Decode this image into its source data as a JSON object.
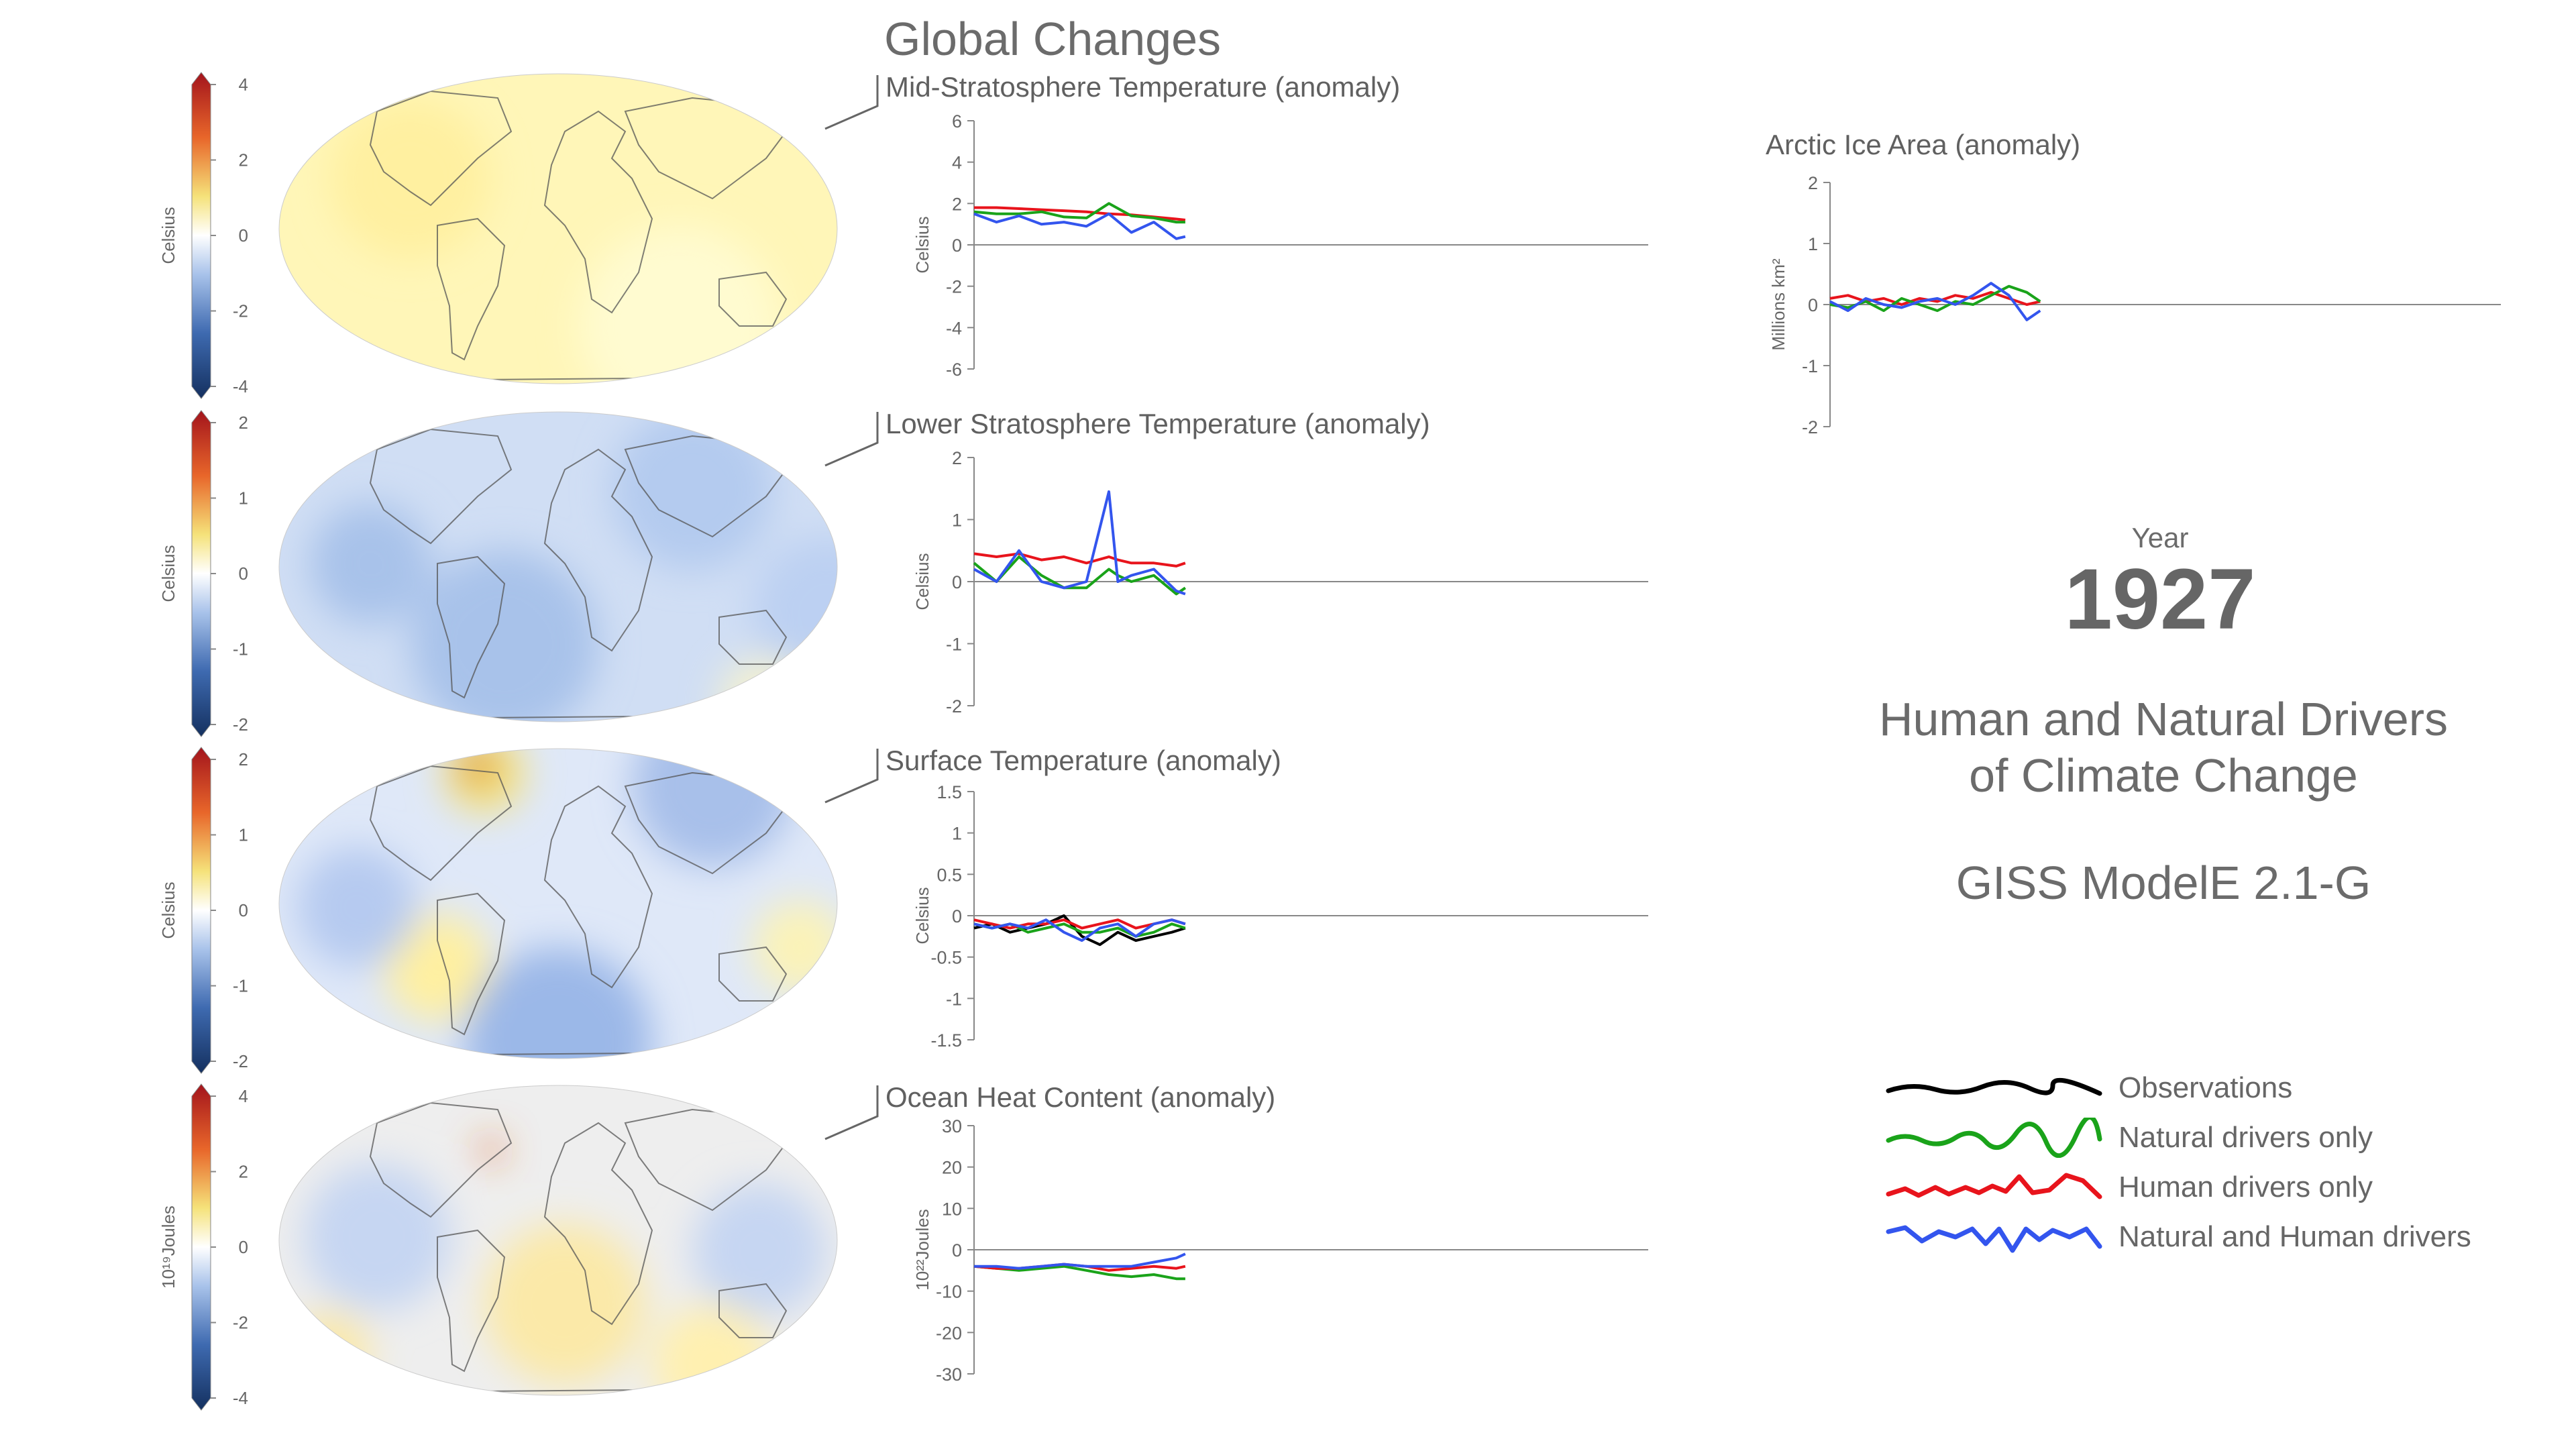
{
  "header": {
    "title": "Global Changes"
  },
  "year": {
    "label": "Year",
    "value": "1927"
  },
  "info": {
    "title_line1": "Human and Natural Drivers",
    "title_line2": "of Climate Change",
    "model": "GISS ModelE 2.1-G"
  },
  "colors": {
    "observations": "#000000",
    "natural": "#1aa31a",
    "human": "#e8141c",
    "natural_and_human": "#3355ee",
    "axis": "#888888",
    "text": "#666666"
  },
  "legend": [
    {
      "label": "Observations",
      "color": "#000000",
      "series": "observations"
    },
    {
      "label": "Natural drivers only",
      "color": "#1aa31a",
      "series": "natural"
    },
    {
      "label": "Human drivers only",
      "color": "#e8141c",
      "series": "human"
    },
    {
      "label": "Natural and Human drivers",
      "color": "#3355ee",
      "series": "natural_and_human"
    }
  ],
  "maps": [
    {
      "name": "map-mid-stratosphere",
      "colorbar_label": "Celsius",
      "colorbar_ticks": [
        "4",
        "2",
        "0",
        "-2",
        "-4"
      ]
    },
    {
      "name": "map-lower-stratosphere",
      "colorbar_label": "Celsius",
      "colorbar_ticks": [
        "2",
        "1",
        "0",
        "-1",
        "-2"
      ]
    },
    {
      "name": "map-surface",
      "colorbar_label": "Celsius",
      "colorbar_ticks": [
        "2",
        "1",
        "0",
        "-1",
        "-2"
      ]
    },
    {
      "name": "map-ocean-heat",
      "colorbar_label": "10¹⁹Joules",
      "colorbar_ticks": [
        "4",
        "2",
        "0",
        "-2",
        "-4"
      ]
    }
  ],
  "chart_data": [
    {
      "type": "line",
      "title": "Mid-Stratosphere Temperature (anomaly)",
      "ylabel": "Celsius",
      "ylim": [
        -6,
        6
      ],
      "yticks": [
        "6",
        "4",
        "2",
        "0",
        "-2",
        "-4",
        "-6"
      ],
      "x": [
        1880,
        1885,
        1890,
        1895,
        1900,
        1905,
        1910,
        1915,
        1920,
        1925,
        1927
      ],
      "series": [
        {
          "name": "Human drivers only",
          "color": "#e8141c",
          "values": [
            1.8,
            1.8,
            1.75,
            1.7,
            1.65,
            1.6,
            1.5,
            1.45,
            1.35,
            1.25,
            1.2
          ]
        },
        {
          "name": "Natural drivers only",
          "color": "#1aa31a",
          "values": [
            1.6,
            1.5,
            1.5,
            1.6,
            1.35,
            1.3,
            2.0,
            1.4,
            1.3,
            1.1,
            1.1
          ]
        },
        {
          "name": "Natural and Human drivers",
          "color": "#3355ee",
          "values": [
            1.5,
            1.1,
            1.4,
            1.0,
            1.1,
            0.9,
            1.5,
            0.6,
            1.1,
            0.3,
            0.4
          ]
        }
      ]
    },
    {
      "type": "line",
      "title": "Lower Stratosphere Temperature (anomaly)",
      "ylabel": "Celsius",
      "ylim": [
        -2,
        2
      ],
      "yticks": [
        "2",
        "1",
        "0",
        "-1",
        "-2"
      ],
      "x": [
        1880,
        1885,
        1890,
        1895,
        1900,
        1905,
        1910,
        1912,
        1915,
        1920,
        1925,
        1927
      ],
      "series": [
        {
          "name": "Human drivers only",
          "color": "#e8141c",
          "values": [
            0.45,
            0.4,
            0.45,
            0.35,
            0.4,
            0.3,
            0.4,
            0.35,
            0.3,
            0.3,
            0.25,
            0.3
          ]
        },
        {
          "name": "Natural drivers only",
          "color": "#1aa31a",
          "values": [
            0.3,
            0.0,
            0.4,
            0.1,
            -0.1,
            -0.1,
            0.2,
            0.1,
            0.0,
            0.1,
            -0.2,
            -0.1
          ]
        },
        {
          "name": "Natural and Human drivers",
          "color": "#3355ee",
          "values": [
            0.2,
            0.0,
            0.5,
            0.0,
            -0.1,
            0.0,
            1.45,
            0.0,
            0.1,
            0.2,
            -0.15,
            -0.2
          ]
        }
      ]
    },
    {
      "type": "line",
      "title": "Surface Temperature (anomaly)",
      "ylabel": "Celsius",
      "ylim": [
        -1.5,
        1.5
      ],
      "yticks": [
        "1.5",
        "1",
        "0.5",
        "0",
        "-0.5",
        "-1",
        "-1.5"
      ],
      "x": [
        1880,
        1884,
        1888,
        1892,
        1896,
        1900,
        1904,
        1908,
        1912,
        1916,
        1920,
        1924,
        1927
      ],
      "series": [
        {
          "name": "Observations",
          "color": "#000000",
          "values": [
            -0.15,
            -0.1,
            -0.2,
            -0.15,
            -0.1,
            0.0,
            -0.25,
            -0.35,
            -0.2,
            -0.3,
            -0.25,
            -0.2,
            -0.15
          ]
        },
        {
          "name": "Natural drivers only",
          "color": "#1aa31a",
          "values": [
            -0.1,
            -0.15,
            -0.1,
            -0.2,
            -0.15,
            -0.1,
            -0.2,
            -0.2,
            -0.15,
            -0.25,
            -0.2,
            -0.1,
            -0.15
          ]
        },
        {
          "name": "Human drivers only",
          "color": "#e8141c",
          "values": [
            -0.05,
            -0.1,
            -0.15,
            -0.1,
            -0.1,
            -0.05,
            -0.15,
            -0.1,
            -0.05,
            -0.15,
            -0.1,
            -0.05,
            -0.1
          ]
        },
        {
          "name": "Natural and Human drivers",
          "color": "#3355ee",
          "values": [
            -0.1,
            -0.15,
            -0.1,
            -0.15,
            -0.05,
            -0.2,
            -0.3,
            -0.15,
            -0.1,
            -0.25,
            -0.1,
            -0.05,
            -0.1
          ]
        }
      ]
    },
    {
      "type": "line",
      "title": "Ocean Heat Content (anomaly)",
      "ylabel": "10²²Joules",
      "ylim": [
        -30,
        30
      ],
      "yticks": [
        "30",
        "20",
        "10",
        "0",
        "-10",
        "-20",
        "-30"
      ],
      "x": [
        1880,
        1885,
        1890,
        1895,
        1900,
        1905,
        1910,
        1915,
        1920,
        1925,
        1927
      ],
      "series": [
        {
          "name": "Natural drivers only",
          "color": "#1aa31a",
          "values": [
            -4,
            -4.5,
            -5,
            -4.5,
            -4,
            -5,
            -6,
            -6.5,
            -6,
            -7,
            -7
          ]
        },
        {
          "name": "Human drivers only",
          "color": "#e8141c",
          "values": [
            -4,
            -4.5,
            -4.5,
            -4,
            -3.5,
            -4,
            -5,
            -4.5,
            -4,
            -4.5,
            -4
          ]
        },
        {
          "name": "Natural and Human drivers",
          "color": "#3355ee",
          "values": [
            -4,
            -4,
            -4.5,
            -4,
            -3.5,
            -4,
            -4,
            -4,
            -3,
            -2,
            -1
          ]
        }
      ]
    },
    {
      "type": "line",
      "title": "Arctic Ice Area (anomaly)",
      "ylabel": "Millions km²",
      "ylim": [
        -2,
        2
      ],
      "yticks": [
        "2",
        "1",
        "0",
        "-1",
        "-2"
      ],
      "x": [
        1880,
        1884,
        1888,
        1892,
        1896,
        1900,
        1904,
        1908,
        1912,
        1916,
        1920,
        1924,
        1927
      ],
      "series": [
        {
          "name": "Human drivers only",
          "color": "#e8141c",
          "values": [
            0.1,
            0.15,
            0.05,
            0.1,
            0.0,
            0.1,
            0.05,
            0.15,
            0.1,
            0.2,
            0.1,
            0.0,
            0.05
          ]
        },
        {
          "name": "Natural drivers only",
          "color": "#1aa31a",
          "values": [
            0.0,
            -0.05,
            0.05,
            -0.1,
            0.1,
            0.0,
            -0.1,
            0.05,
            0.0,
            0.15,
            0.3,
            0.2,
            0.05
          ]
        },
        {
          "name": "Natural and Human drivers",
          "color": "#3355ee",
          "values": [
            0.05,
            -0.1,
            0.1,
            0.0,
            -0.05,
            0.05,
            0.1,
            0.0,
            0.15,
            0.35,
            0.15,
            -0.25,
            -0.1
          ]
        }
      ]
    }
  ]
}
